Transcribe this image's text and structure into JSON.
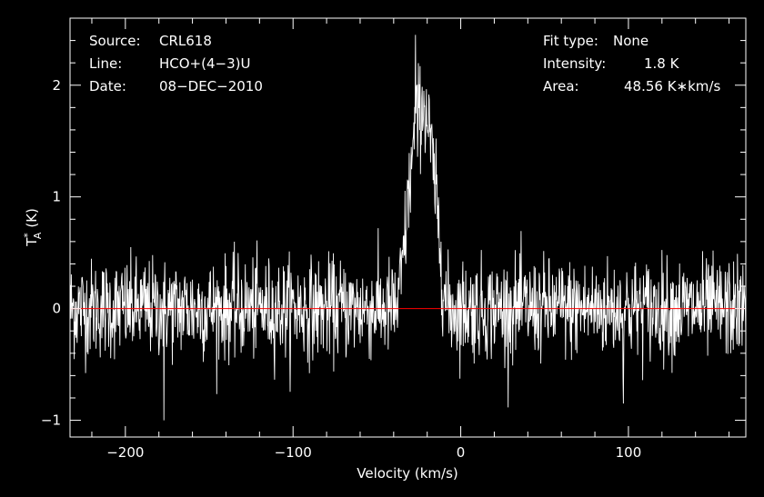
{
  "chart_data": {
    "type": "line",
    "header_left": [
      {
        "key": "Source:",
        "value": "CRL618"
      },
      {
        "key": "Line:",
        "value": "HCO+(4−3)U"
      },
      {
        "key": "Date:",
        "value": "08−DEC−2010"
      }
    ],
    "header_right": [
      {
        "key": "Fit type:",
        "value": "None"
      },
      {
        "key": "Intensity:",
        "value": "1.8 K"
      },
      {
        "key": "Area:",
        "value": "48.56 K∗km/s"
      }
    ],
    "xlabel": "Velocity (km/s)",
    "ylabel_base": "T",
    "ylabel_sup": "*",
    "ylabel_sub": "A",
    "ylabel_unit": "(K)",
    "xlim": [
      -233,
      170
    ],
    "ylim": [
      -1.15,
      2.6
    ],
    "xticks": [
      {
        "value": -200,
        "label": "−200"
      },
      {
        "value": -100,
        "label": "−100"
      },
      {
        "value": 0,
        "label": "0"
      },
      {
        "value": 100,
        "label": "100"
      }
    ],
    "yticks": [
      {
        "value": -1,
        "label": "−1"
      },
      {
        "value": 0,
        "label": "0"
      },
      {
        "value": 1,
        "label": "1"
      },
      {
        "value": 2,
        "label": "2"
      }
    ],
    "baseline": 0,
    "noise_rms": 0.22,
    "features": [
      {
        "kind": "profile",
        "v_start": -38,
        "v_end": -8,
        "peak_velocity": -24,
        "peak_value": 1.8
      },
      {
        "kind": "spike",
        "velocity": -27,
        "value": 2.45
      },
      {
        "kind": "spike",
        "velocity": -22,
        "value": 1.95
      },
      {
        "kind": "spike",
        "velocity": -177,
        "value": -1.0
      },
      {
        "kind": "spike",
        "velocity": 97,
        "value": -0.85
      }
    ],
    "colors": {
      "background": "#000000",
      "spectrum": "#ffffff",
      "axes": "#ffffff",
      "baseline": "#ff0000"
    }
  }
}
